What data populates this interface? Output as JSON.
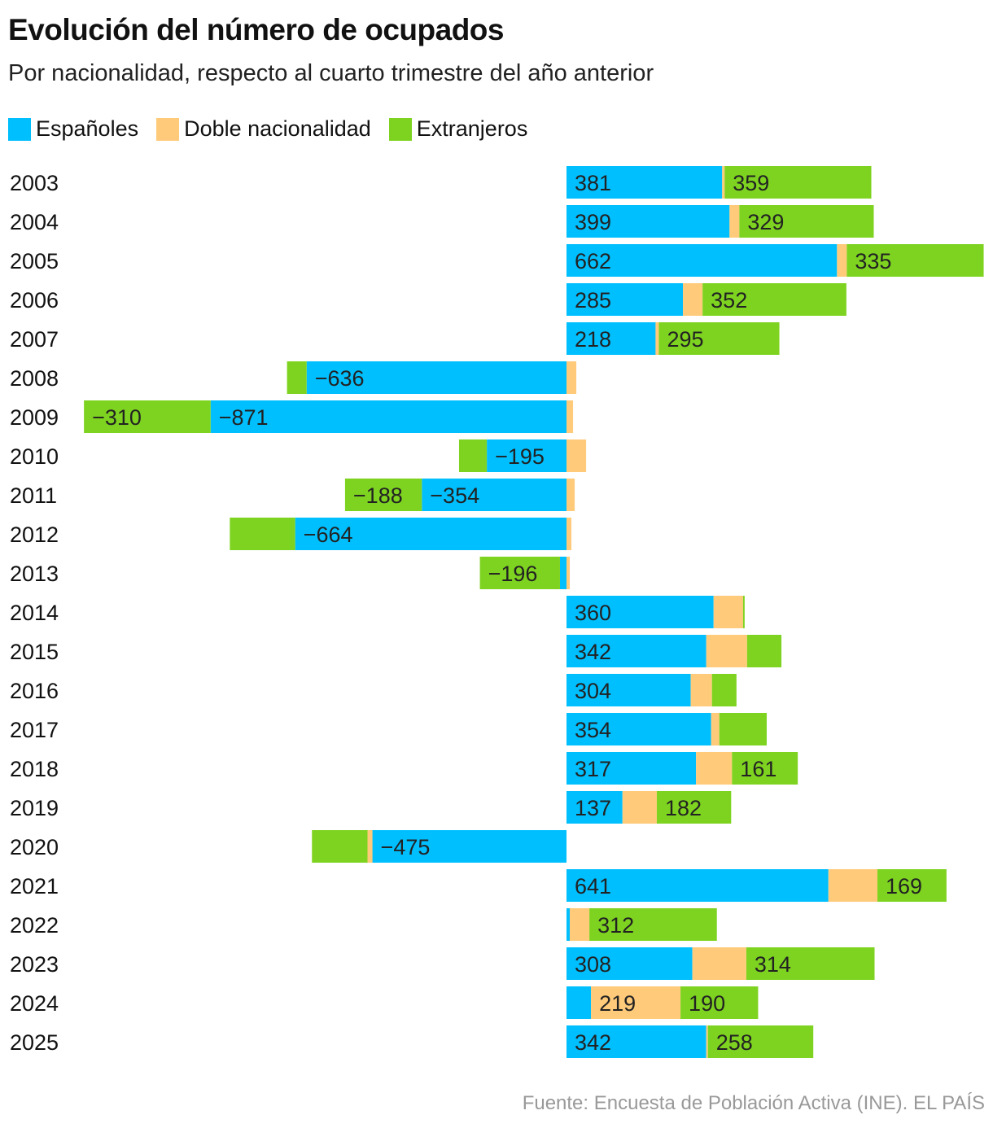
{
  "chart_data": {
    "type": "bar",
    "orientation": "horizontal",
    "stacked": "diverging",
    "title": "Evolución del número de ocupados",
    "subtitle": "Por nacionalidad, respecto al cuarto trimestre del año anterior",
    "legend_position": "top-left",
    "grid": false,
    "categories": [
      "2003",
      "2004",
      "2005",
      "2006",
      "2007",
      "2008",
      "2009",
      "2010",
      "2011",
      "2012",
      "2013",
      "2014",
      "2015",
      "2016",
      "2017",
      "2018",
      "2019",
      "2020",
      "2021",
      "2022",
      "2023",
      "2024",
      "2025"
    ],
    "series": [
      {
        "name": "Españoles",
        "color": "#00BFFF",
        "values": [
          381,
          399,
          662,
          285,
          218,
          -636,
          -871,
          -195,
          -354,
          -664,
          -16,
          360,
          342,
          304,
          354,
          317,
          137,
          -475,
          641,
          8,
          308,
          60,
          342
        ],
        "labeled": [
          true,
          true,
          true,
          true,
          true,
          true,
          true,
          true,
          true,
          true,
          false,
          true,
          true,
          true,
          true,
          true,
          true,
          true,
          true,
          false,
          true,
          false,
          true
        ]
      },
      {
        "name": "Doble nacionalidad",
        "color": "#FFCA7A",
        "values": [
          6,
          24,
          24,
          48,
          8,
          24,
          16,
          48,
          20,
          12,
          8,
          72,
          100,
          52,
          20,
          88,
          84,
          -12,
          120,
          48,
          132,
          219,
          4
        ],
        "labeled": [
          false,
          false,
          false,
          false,
          false,
          false,
          false,
          false,
          false,
          false,
          false,
          false,
          false,
          false,
          false,
          false,
          false,
          false,
          false,
          false,
          false,
          true,
          false
        ]
      },
      {
        "name": "Extranjeros",
        "color": "#7ED321",
        "values": [
          359,
          329,
          335,
          352,
          295,
          -48,
          -310,
          -68,
          -188,
          -160,
          -196,
          4,
          84,
          60,
          116,
          161,
          182,
          -136,
          169,
          312,
          314,
          190,
          258
        ],
        "labeled": [
          true,
          true,
          true,
          true,
          true,
          false,
          true,
          false,
          true,
          false,
          true,
          false,
          false,
          false,
          false,
          true,
          true,
          false,
          true,
          true,
          true,
          true,
          true
        ]
      }
    ],
    "xlim": [
      -1180,
      1020
    ]
  },
  "source": "Fuente: Encuesta de Población Activa (INE). EL PAÍS"
}
